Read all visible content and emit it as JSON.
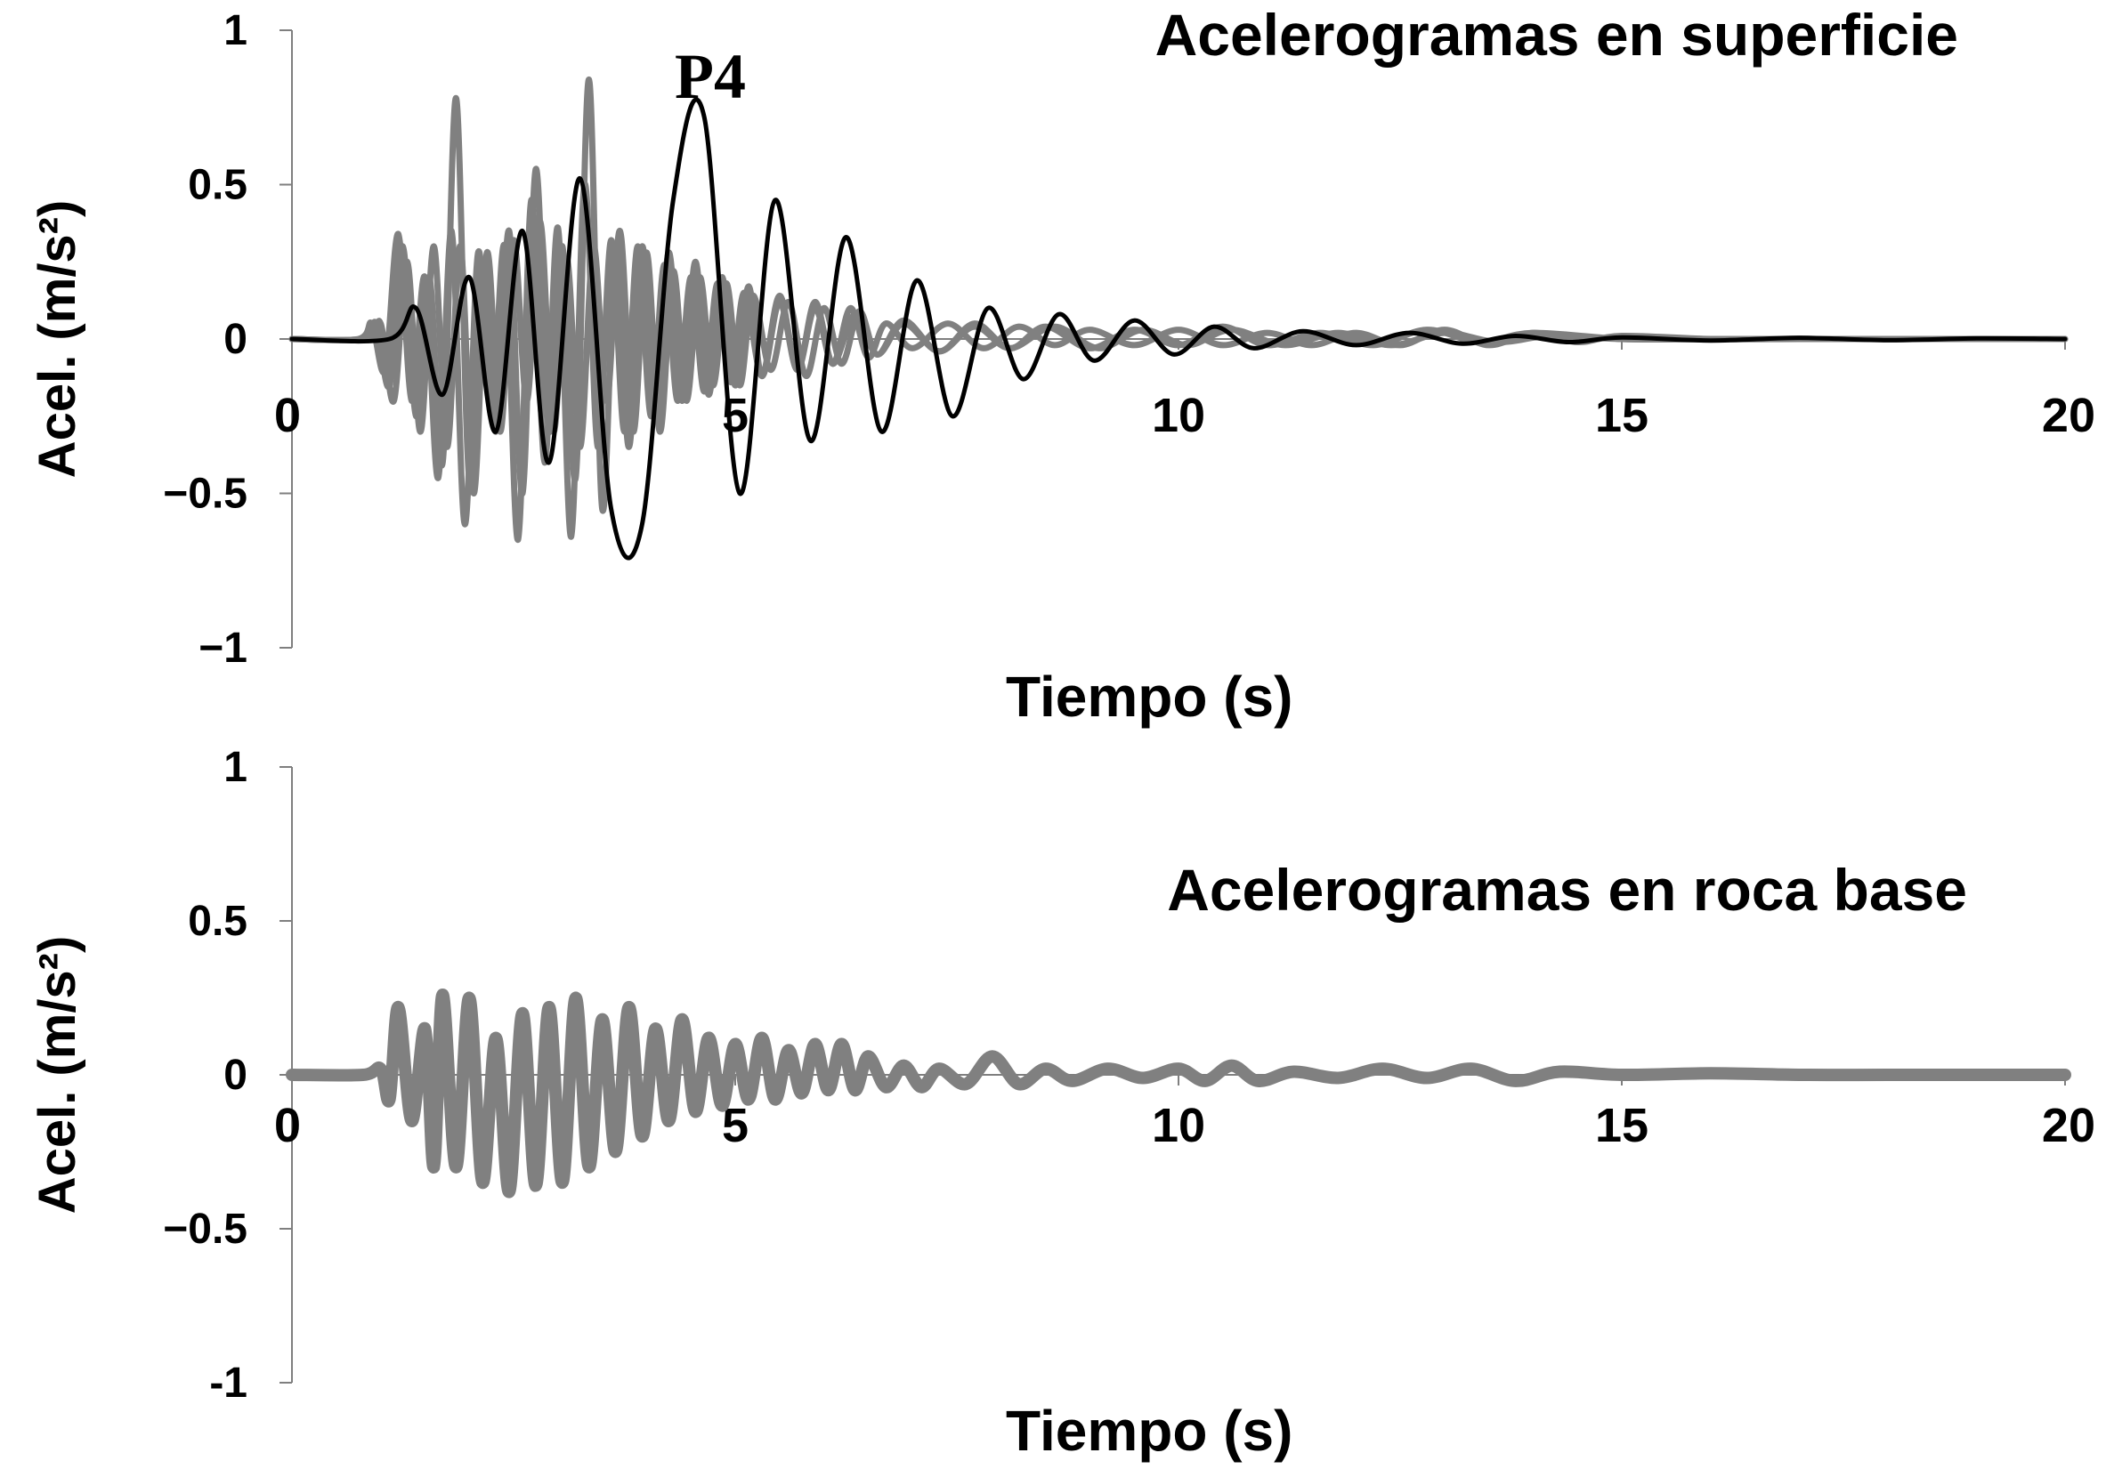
{
  "chart_data": [
    {
      "type": "line",
      "title": "Acelerogramas en superficie",
      "xlabel": "Tiempo (s)",
      "ylabel": "Acel. (m/s²)",
      "xlim": [
        0,
        20
      ],
      "ylim": [
        -1,
        1
      ],
      "xticks": [
        "0",
        "5",
        "10",
        "15",
        "20"
      ],
      "yticks": [
        "1",
        "0.5",
        "0",
        "−0.5",
        "−1"
      ],
      "grid": false,
      "annotation": "P4",
      "colors": {
        "highlight": "#000000",
        "others": "#808080"
      },
      "series": [
        {
          "name": "P4",
          "x": [
            0,
            1.1,
            1.4,
            1.7,
            2.0,
            2.3,
            2.6,
            2.9,
            3.25,
            3.6,
            3.95,
            4.3,
            4.65,
            5.05,
            5.45,
            5.85,
            6.25,
            6.65,
            7.05,
            7.45,
            7.85,
            8.25,
            8.65,
            9.05,
            9.5,
            9.95,
            10.4,
            10.85,
            11.4,
            12.0,
            12.6,
            13.2,
            13.8,
            14.4,
            15,
            16,
            17,
            18,
            19,
            20
          ],
          "y": [
            0,
            0,
            0.1,
            -0.18,
            0.2,
            -0.3,
            0.35,
            -0.4,
            0.52,
            -0.55,
            -0.6,
            0.45,
            0.72,
            -0.5,
            0.45,
            -0.33,
            0.33,
            -0.3,
            0.19,
            -0.25,
            0.1,
            -0.13,
            0.08,
            -0.07,
            0.06,
            -0.05,
            0.04,
            -0.03,
            0.025,
            -0.02,
            0.02,
            -0.015,
            0.01,
            -0.01,
            0.005,
            -0.005,
            0.004,
            -0.004,
            0.002,
            0
          ]
        },
        {
          "x": [
            0,
            0.8,
            0.95,
            1.1,
            1.25,
            1.4,
            1.55,
            1.7,
            1.85,
            2.0,
            2.15,
            2.3,
            2.45,
            2.6,
            2.75,
            2.9,
            3.05,
            3.2,
            3.35,
            3.5,
            3.65,
            3.8,
            3.95,
            4.1,
            4.25,
            4.4,
            4.55,
            4.7,
            4.85,
            5.0,
            5.15,
            5.3,
            5.5,
            5.7,
            5.9,
            6.1,
            6.3,
            6.5,
            6.7,
            7.0,
            7.4,
            7.8,
            8.2,
            8.6,
            9.0,
            9.5,
            10.0,
            10.5,
            11.0,
            11.5,
            12.0,
            12.5,
            13.0,
            13.5,
            14.0,
            14.5,
            15.0,
            16,
            17,
            18,
            19,
            20
          ],
          "y": [
            0,
            0,
            0.05,
            -0.15,
            0.3,
            -0.25,
            0.2,
            -0.4,
            0.78,
            -0.45,
            0.25,
            -0.3,
            0.35,
            -0.5,
            0.55,
            -0.3,
            0.3,
            -0.45,
            0.84,
            -0.55,
            0.3,
            -0.35,
            0.3,
            -0.25,
            0.28,
            -0.2,
            0.25,
            -0.18,
            0.2,
            -0.15,
            0.17,
            -0.12,
            0.14,
            -0.1,
            0.12,
            -0.08,
            0.1,
            -0.06,
            0.05,
            -0.03,
            0.05,
            -0.03,
            0.04,
            -0.02,
            0.03,
            -0.02,
            0.03,
            -0.02,
            0.02,
            -0.02,
            0.02,
            -0.02,
            0.03,
            -0.02,
            0.02,
            -0.01,
            0.01,
            0,
            0,
            0,
            0,
            0
          ]
        },
        {
          "x": [
            0,
            0.75,
            0.9,
            1.05,
            1.2,
            1.35,
            1.5,
            1.65,
            1.8,
            1.95,
            2.1,
            2.25,
            2.4,
            2.55,
            2.7,
            2.85,
            3.0,
            3.15,
            3.3,
            3.45,
            3.6,
            3.75,
            3.9,
            4.05,
            4.2,
            4.35,
            4.5,
            4.65,
            4.8,
            4.95,
            5.1,
            5.3,
            5.5,
            5.7,
            5.9,
            6.1,
            6.35,
            6.6,
            6.9,
            7.3,
            7.7,
            8.1,
            8.6,
            9.1,
            9.6,
            10.1,
            10.6,
            11.2,
            11.8,
            12.4,
            13.0,
            13.6,
            14.2,
            15,
            16,
            17,
            18,
            19,
            20
          ],
          "y": [
            0,
            0,
            0.05,
            -0.1,
            0.34,
            -0.2,
            0.2,
            -0.45,
            0.35,
            -0.6,
            0.28,
            -0.25,
            0.3,
            -0.65,
            0.45,
            -0.4,
            0.36,
            -0.64,
            0.5,
            -0.35,
            0.32,
            -0.3,
            0.3,
            -0.25,
            0.24,
            -0.2,
            0.2,
            -0.17,
            0.18,
            -0.14,
            0.15,
            -0.12,
            0.12,
            -0.1,
            0.1,
            -0.08,
            0.08,
            -0.05,
            0.05,
            -0.04,
            0.04,
            -0.03,
            0.04,
            -0.03,
            0.03,
            -0.02,
            0.03,
            -0.02,
            0.02,
            -0.02,
            0.02,
            -0.01,
            0.01,
            0,
            0,
            0,
            0,
            0,
            0
          ]
        },
        {
          "x": [
            0,
            0.85,
            1.0,
            1.15,
            1.3,
            1.45,
            1.6,
            1.75,
            1.9,
            2.05,
            2.2,
            2.35,
            2.5,
            2.65,
            2.8,
            2.95,
            3.1,
            3.25,
            3.4,
            3.55,
            3.7,
            3.85,
            4.0,
            4.15,
            4.3,
            4.45,
            4.6,
            4.75,
            4.9,
            5.05,
            5.2,
            5.4,
            5.6,
            5.8,
            6.0,
            6.2,
            6.4,
            6.6,
            6.9,
            7.3,
            7.7,
            8.1,
            8.5,
            9.0,
            9.5,
            10.0,
            10.5,
            11.0,
            11.6,
            12.2,
            12.8,
            13.4,
            14.0,
            15,
            16,
            17,
            18,
            19,
            20
          ],
          "y": [
            0,
            0,
            0.05,
            -0.2,
            0.25,
            -0.3,
            0.3,
            -0.35,
            0.3,
            -0.5,
            0.28,
            -0.3,
            0.32,
            -0.2,
            0.38,
            -0.3,
            0.26,
            -0.35,
            0.3,
            -0.2,
            0.35,
            -0.3,
            0.28,
            -0.3,
            0.22,
            -0.2,
            0.2,
            -0.15,
            0.18,
            -0.15,
            0.14,
            -0.1,
            0.12,
            -0.12,
            0.1,
            -0.08,
            0.09,
            -0.05,
            0.06,
            -0.04,
            0.05,
            -0.03,
            0.04,
            -0.03,
            0.03,
            -0.02,
            0.04,
            -0.02,
            0.02,
            -0.02,
            0.03,
            -0.01,
            0.02,
            0,
            0,
            0,
            0,
            0,
            0
          ]
        }
      ]
    },
    {
      "type": "line",
      "title": "Acelerogramas en roca base",
      "xlabel": "Tiempo (s)",
      "ylabel": "Acel. (m/s²)",
      "xlim": [
        0,
        20
      ],
      "ylim": [
        -1,
        1
      ],
      "xticks": [
        "0",
        "5",
        "10",
        "15",
        "20"
      ],
      "yticks": [
        "1",
        "0.5",
        "0",
        "−0.5",
        "-1"
      ],
      "grid": false,
      "colors": {
        "trace": "#808080"
      },
      "series": [
        {
          "x": [
            0,
            0.8,
            1.0,
            1.1,
            1.2,
            1.35,
            1.5,
            1.6,
            1.7,
            1.85,
            2.0,
            2.15,
            2.3,
            2.45,
            2.6,
            2.75,
            2.9,
            3.05,
            3.2,
            3.35,
            3.5,
            3.65,
            3.8,
            3.95,
            4.1,
            4.25,
            4.4,
            4.55,
            4.7,
            4.85,
            5.0,
            5.15,
            5.3,
            5.45,
            5.6,
            5.75,
            5.9,
            6.05,
            6.2,
            6.35,
            6.5,
            6.7,
            6.9,
            7.1,
            7.3,
            7.6,
            7.9,
            8.2,
            8.5,
            8.8,
            9.2,
            9.6,
            10.0,
            10.3,
            10.6,
            10.9,
            11.3,
            11.8,
            12.3,
            12.8,
            13.3,
            13.8,
            14.3,
            15,
            16,
            17,
            18,
            19,
            20
          ],
          "y": [
            0,
            0,
            0.02,
            -0.08,
            0.22,
            -0.15,
            0.15,
            -0.3,
            0.26,
            -0.3,
            0.25,
            -0.35,
            0.12,
            -0.38,
            0.2,
            -0.36,
            0.22,
            -0.35,
            0.25,
            -0.3,
            0.18,
            -0.25,
            0.22,
            -0.2,
            0.15,
            -0.15,
            0.18,
            -0.12,
            0.12,
            -0.1,
            0.1,
            -0.08,
            0.12,
            -0.08,
            0.08,
            -0.06,
            0.1,
            -0.05,
            0.1,
            -0.05,
            0.06,
            -0.04,
            0.03,
            -0.04,
            0.02,
            -0.03,
            0.06,
            -0.03,
            0.02,
            -0.02,
            0.02,
            -0.01,
            0.02,
            -0.02,
            0.03,
            -0.02,
            0.01,
            -0.01,
            0.02,
            -0.01,
            0.02,
            -0.02,
            0.01,
            0,
            0.005,
            0,
            0,
            0,
            0
          ]
        }
      ]
    }
  ]
}
